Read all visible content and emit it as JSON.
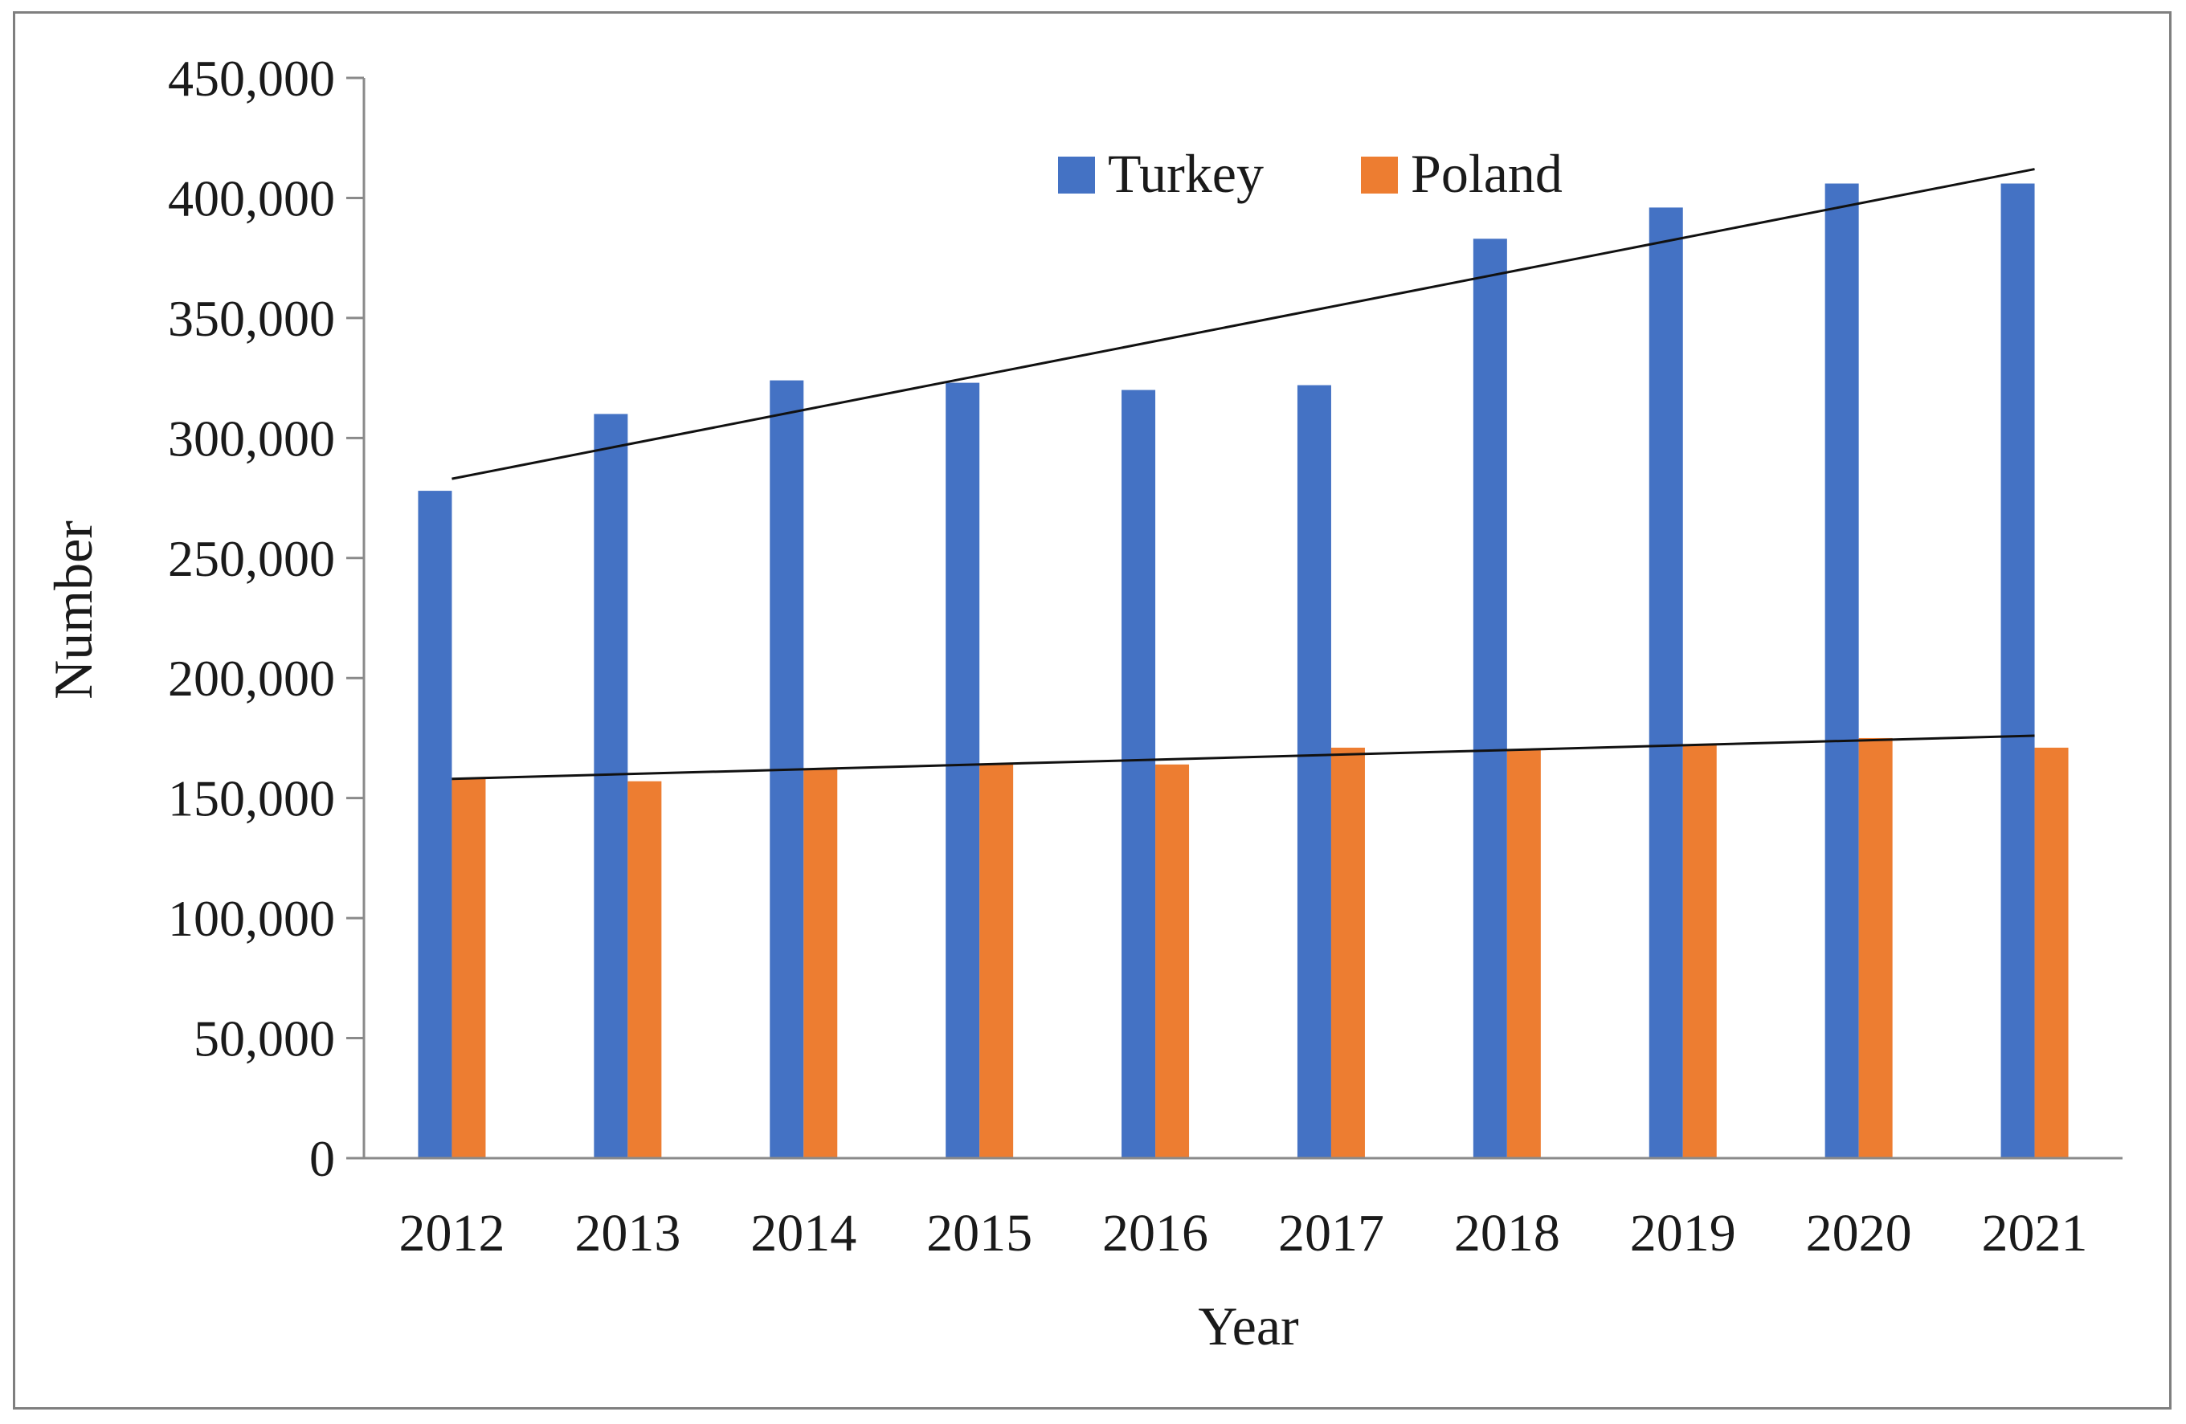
{
  "chart_data": {
    "type": "bar",
    "title": "",
    "xlabel": "Year",
    "ylabel": "Number",
    "ylim": [
      0,
      450000
    ],
    "ytick_step": 50000,
    "ytick_labels": [
      "0",
      "50,000",
      "100,000",
      "150,000",
      "200,000",
      "250,000",
      "300,000",
      "350,000",
      "400,000",
      "450,000"
    ],
    "categories": [
      "2012",
      "2013",
      "2014",
      "2015",
      "2016",
      "2017",
      "2018",
      "2019",
      "2020",
      "2021"
    ],
    "series": [
      {
        "name": "Turkey",
        "color": "#4472c4",
        "values": [
          278000,
          310000,
          324000,
          323000,
          320000,
          322000,
          383000,
          396000,
          406000,
          406000
        ]
      },
      {
        "name": "Poland",
        "color": "#ed7d31",
        "values": [
          158000,
          157000,
          162000,
          164000,
          164000,
          171000,
          170000,
          172000,
          175000,
          171000
        ]
      }
    ],
    "trendlines": [
      {
        "series": "Turkey",
        "type": "linear",
        "start": 283000,
        "end": 412000
      },
      {
        "series": "Poland",
        "type": "linear",
        "start": 158000,
        "end": 176000
      }
    ],
    "grid": false,
    "legend_position": "top-center"
  }
}
